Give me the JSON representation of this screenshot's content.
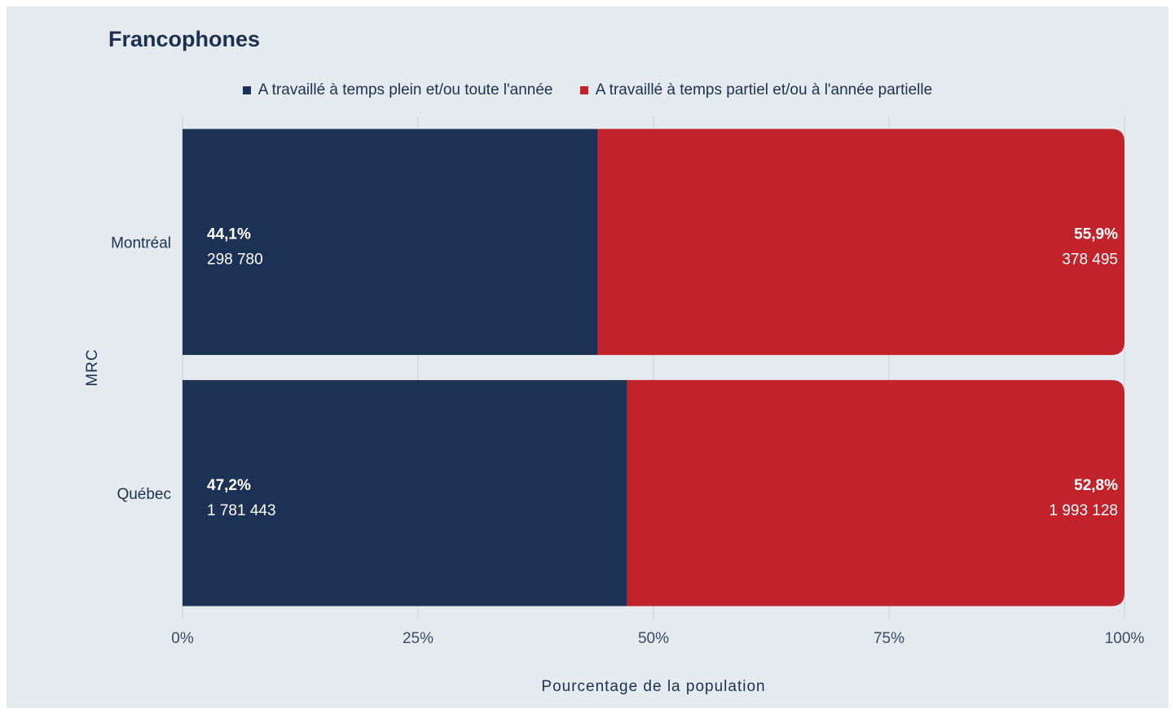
{
  "chart_data": {
    "type": "bar",
    "orientation": "horizontal",
    "stacked": true,
    "title": "Francophones",
    "xlabel": "Pourcentage de la population",
    "ylabel": "MRC",
    "xlim": [
      0,
      100
    ],
    "x_ticks": [
      "0%",
      "25%",
      "50%",
      "75%",
      "100%"
    ],
    "categories": [
      "Montréal",
      "Québec"
    ],
    "series": [
      {
        "name": "A travaillé à temps plein et/ou toute l'année",
        "color": "#1c3254",
        "values": [
          44.1,
          47.2
        ],
        "value_labels": [
          "44,1%",
          "47,2%"
        ],
        "counts": [
          "298 780",
          "1 781 443"
        ]
      },
      {
        "name": "A travaillé à temps partiel et/ou à l'année partielle",
        "color": "#c2232a",
        "values": [
          55.9,
          52.8
        ],
        "value_labels": [
          "55,9%",
          "52,8%"
        ],
        "counts": [
          "378 495",
          "1 993 128"
        ]
      }
    ],
    "legend_position": "top-center",
    "grid": "vertical"
  }
}
